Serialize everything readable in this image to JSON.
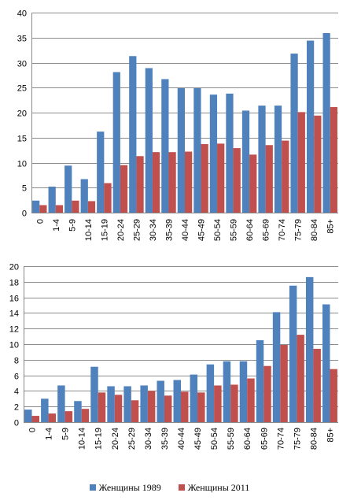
{
  "colors": {
    "series_1989": "#4F81BD",
    "series_2011": "#C0504D",
    "grid": "#8C8C8C",
    "axis": "#888888"
  },
  "legend": {
    "item_1989": "Женщины 1989",
    "item_2011": "Женщины 2011"
  },
  "chart_data": [
    {
      "type": "bar",
      "title": "",
      "xlabel": "",
      "ylabel": "",
      "ylim": [
        0,
        40
      ],
      "yticks": [
        0,
        5,
        10,
        15,
        20,
        25,
        30,
        35,
        40
      ],
      "grid": true,
      "legend_position": "bottom",
      "categories": [
        "0",
        "1-4",
        "5-9",
        "10-14",
        "15-19",
        "20-24",
        "25-29",
        "30-34",
        "35-39",
        "40-44",
        "45-49",
        "50-54",
        "55-59",
        "60-64",
        "65-69",
        "70-74",
        "75-79",
        "80-84",
        "85+"
      ],
      "series": [
        {
          "name": "Женщины 1989",
          "values": [
            2.4,
            5.2,
            9.4,
            6.7,
            16.2,
            28.1,
            31.3,
            28.9,
            26.7,
            24.9,
            24.9,
            23.6,
            23.8,
            20.4,
            21.4,
            21.4,
            31.8,
            34.4,
            35.9
          ]
        },
        {
          "name": "Женщины 2011",
          "values": [
            1.5,
            1.5,
            2.4,
            2.3,
            5.9,
            9.5,
            11.3,
            12.1,
            12.1,
            12.2,
            13.7,
            13.8,
            12.9,
            11.6,
            13.5,
            14.4,
            20.1,
            19.4,
            21.1
          ]
        }
      ]
    },
    {
      "type": "bar",
      "title": "",
      "xlabel": "",
      "ylabel": "",
      "ylim": [
        0,
        20
      ],
      "yticks": [
        0,
        2,
        4,
        6,
        8,
        10,
        12,
        14,
        16,
        18,
        20
      ],
      "grid": true,
      "legend_position": "bottom",
      "categories": [
        "0",
        "1-4",
        "5-9",
        "10-14",
        "15-19",
        "20-24",
        "25-29",
        "30-34",
        "35-39",
        "40-44",
        "45-49",
        "50-54",
        "55-59",
        "60-64",
        "65-69",
        "70-74",
        "75-79",
        "80-84",
        "85+"
      ],
      "series": [
        {
          "name": "Женщины 1989",
          "values": [
            1.6,
            3.0,
            4.7,
            2.7,
            7.1,
            4.6,
            4.6,
            4.7,
            5.3,
            5.4,
            6.1,
            7.4,
            7.8,
            7.8,
            10.5,
            14.1,
            17.5,
            18.6,
            15.1
          ]
        },
        {
          "name": "Женщины 2011",
          "values": [
            0.8,
            1.1,
            1.4,
            1.7,
            3.8,
            3.5,
            2.8,
            4.0,
            3.4,
            3.9,
            3.8,
            4.7,
            4.8,
            5.6,
            7.2,
            9.9,
            11.2,
            9.4,
            6.8
          ]
        }
      ]
    }
  ]
}
